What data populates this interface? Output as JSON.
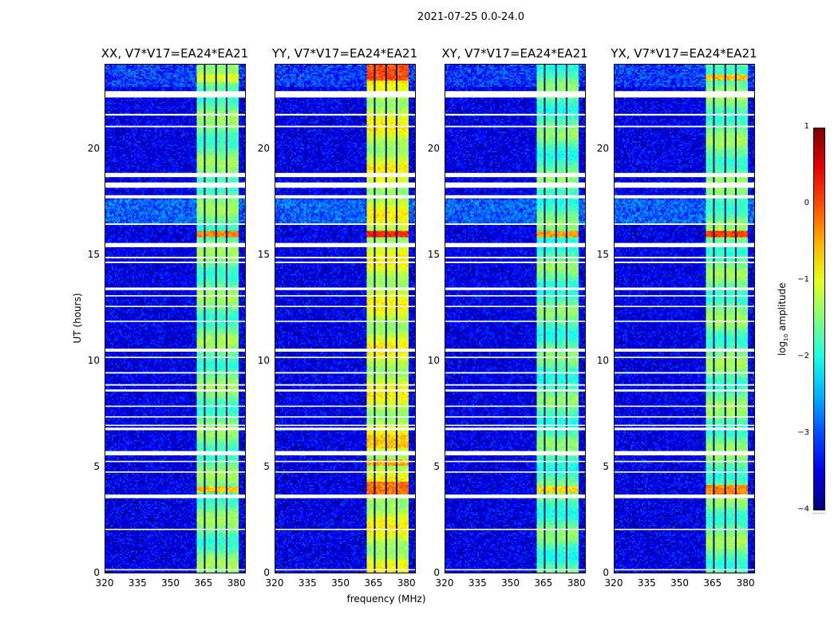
{
  "suptitle": "2021-07-25 0.0-24.0",
  "chart_data": {
    "type": "heatmap",
    "xlabel": "frequency (MHz)",
    "ylabel": "UT (hours)",
    "xlim": [
      320,
      384.3
    ],
    "ylim": [
      0,
      24
    ],
    "xticks": [
      "320",
      "335",
      "350",
      "365",
      "380"
    ],
    "xtick_values": [
      320,
      335,
      350,
      365,
      380
    ],
    "yticks": [
      "0",
      "5",
      "10",
      "15",
      "20"
    ],
    "ytick_values": [
      0,
      5,
      10,
      15,
      20
    ],
    "panels": [
      {
        "title": "XX, V7*V17=EA24*EA21",
        "band_level": -1.6,
        "hot": [
          [
            15.9,
            16.2,
            -0.3
          ],
          [
            3.9,
            4.2,
            -0.6
          ],
          [
            23.2,
            23.6,
            -1.0
          ]
        ]
      },
      {
        "title": "YY, V7*V17=EA24*EA21",
        "band_level": -1.1,
        "hot": [
          [
            15.9,
            16.2,
            0.2
          ],
          [
            23.3,
            24.0,
            0.0
          ],
          [
            3.8,
            4.4,
            -0.2
          ],
          [
            5.2,
            5.5,
            -0.5
          ],
          [
            6.0,
            6.6,
            -0.6
          ]
        ]
      },
      {
        "title": "XY, V7*V17=EA24*EA21",
        "band_level": -1.7,
        "hot": [
          [
            15.9,
            16.2,
            -0.4
          ],
          [
            3.9,
            4.2,
            -0.7
          ]
        ]
      },
      {
        "title": "YX, V7*V17=EA24*EA21",
        "band_level": -1.6,
        "hot": [
          [
            15.9,
            16.2,
            0.1
          ],
          [
            3.8,
            4.3,
            -0.3
          ],
          [
            23.3,
            23.6,
            -0.6
          ]
        ]
      }
    ],
    "background_level": -3.5,
    "band_freq_range_mhz": [
      360.7,
      380.0
    ],
    "channel_gaps_mhz": [
      365.2,
      370.4,
      375.2
    ],
    "flagged_hours": [
      [
        22.45,
        22.75
      ],
      [
        21.6,
        21.68
      ],
      [
        21.05,
        21.12
      ],
      [
        18.7,
        18.9
      ],
      [
        18.2,
        18.45
      ],
      [
        17.7,
        17.85
      ],
      [
        16.45,
        16.52
      ],
      [
        15.4,
        15.6
      ],
      [
        14.88,
        14.95
      ],
      [
        14.65,
        14.72
      ],
      [
        13.38,
        13.5
      ],
      [
        13.08,
        13.14
      ],
      [
        12.58,
        12.64
      ],
      [
        11.88,
        11.94
      ],
      [
        10.48,
        10.62
      ],
      [
        10.18,
        10.24
      ],
      [
        9.45,
        9.52
      ],
      [
        8.88,
        8.95
      ],
      [
        8.6,
        8.7
      ],
      [
        7.88,
        7.94
      ],
      [
        7.38,
        7.44
      ],
      [
        6.98,
        7.04
      ],
      [
        6.78,
        6.9
      ],
      [
        5.6,
        5.8
      ],
      [
        5.28,
        5.34
      ],
      [
        4.78,
        4.84
      ],
      [
        3.58,
        3.75
      ],
      [
        2.08,
        2.14
      ],
      [
        0.18,
        0.24
      ]
    ],
    "bright_background_hours": [
      [
        16.5,
        17.7,
        -2.9
      ],
      [
        23.0,
        24.0,
        -3.1
      ]
    ],
    "colorbar": {
      "label": "log10 amplitude",
      "range": [
        -4,
        1
      ],
      "ticks": [
        "−4",
        "−3",
        "−2",
        "−1",
        "0",
        "1"
      ],
      "tick_values": [
        -4,
        -3,
        -2,
        -1,
        0,
        1
      ],
      "colormap": "jet"
    }
  }
}
